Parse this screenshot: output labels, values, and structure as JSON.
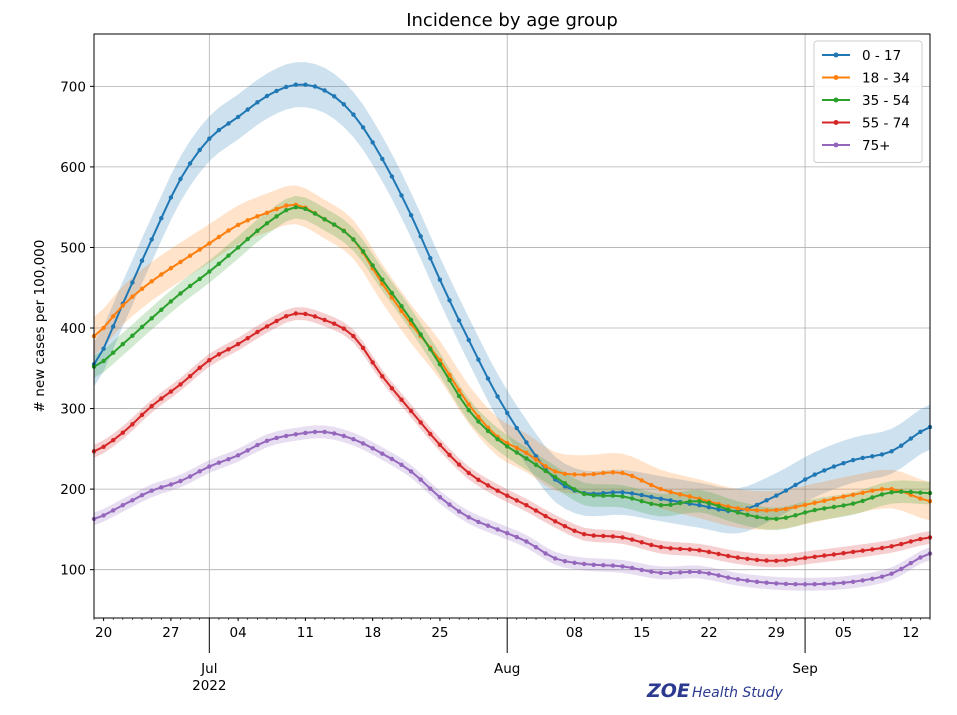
{
  "chart_data": {
    "type": "line",
    "title": "Incidence by age group",
    "xlabel": "",
    "ylabel": "# new cases per 100,000",
    "x_range": [
      "2022-06-19",
      "2022-09-14"
    ],
    "ylim": [
      40,
      765
    ],
    "grid": true,
    "legend_position": "top-right",
    "y_ticks": [
      100,
      200,
      300,
      400,
      500,
      600,
      700
    ],
    "x_minor_ticks": [
      {
        "date": "2022-06-20",
        "label": "20"
      },
      {
        "date": "2022-06-27",
        "label": "27"
      },
      {
        "date": "2022-07-04",
        "label": "04"
      },
      {
        "date": "2022-07-11",
        "label": "11"
      },
      {
        "date": "2022-07-18",
        "label": "18"
      },
      {
        "date": "2022-07-25",
        "label": "25"
      },
      {
        "date": "2022-08-08",
        "label": "08"
      },
      {
        "date": "2022-08-15",
        "label": "15"
      },
      {
        "date": "2022-08-22",
        "label": "22"
      },
      {
        "date": "2022-08-29",
        "label": "29"
      },
      {
        "date": "2022-09-05",
        "label": "05"
      },
      {
        "date": "2022-09-12",
        "label": "12"
      }
    ],
    "x_major_ticks": [
      {
        "date": "2022-07-01",
        "label": "Jul",
        "sublabel": "2022"
      },
      {
        "date": "2022-08-01",
        "label": "Aug",
        "sublabel": ""
      },
      {
        "date": "2022-09-01",
        "label": "Sep",
        "sublabel": ""
      }
    ],
    "series": [
      {
        "name": "0 - 17",
        "color": "#1f77b4",
        "band": 28,
        "points": [
          [
            "2022-06-19",
            355
          ],
          [
            "2022-06-22",
            430
          ],
          [
            "2022-06-25",
            510
          ],
          [
            "2022-06-28",
            585
          ],
          [
            "2022-07-01",
            635
          ],
          [
            "2022-07-04",
            662
          ],
          [
            "2022-07-07",
            688
          ],
          [
            "2022-07-10",
            702
          ],
          [
            "2022-07-13",
            695
          ],
          [
            "2022-07-16",
            665
          ],
          [
            "2022-07-19",
            610
          ],
          [
            "2022-07-22",
            540
          ],
          [
            "2022-07-25",
            460
          ],
          [
            "2022-07-28",
            385
          ],
          [
            "2022-07-31",
            315
          ],
          [
            "2022-08-03",
            258
          ],
          [
            "2022-08-06",
            212
          ],
          [
            "2022-08-09",
            195
          ],
          [
            "2022-08-13",
            196
          ],
          [
            "2022-08-17",
            188
          ],
          [
            "2022-08-21",
            180
          ],
          [
            "2022-08-25",
            173
          ],
          [
            "2022-08-29",
            192
          ],
          [
            "2022-09-02",
            218
          ],
          [
            "2022-09-06",
            236
          ],
          [
            "2022-09-10",
            247
          ],
          [
            "2022-09-14",
            277
          ]
        ]
      },
      {
        "name": "18 - 34",
        "color": "#ff7f0e",
        "band": 24,
        "points": [
          [
            "2022-06-19",
            390
          ],
          [
            "2022-06-22",
            428
          ],
          [
            "2022-06-25",
            458
          ],
          [
            "2022-06-28",
            482
          ],
          [
            "2022-07-01",
            505
          ],
          [
            "2022-07-04",
            528
          ],
          [
            "2022-07-07",
            543
          ],
          [
            "2022-07-10",
            553
          ],
          [
            "2022-07-13",
            535
          ],
          [
            "2022-07-16",
            510
          ],
          [
            "2022-07-19",
            455
          ],
          [
            "2022-07-22",
            405
          ],
          [
            "2022-07-25",
            360
          ],
          [
            "2022-07-28",
            305
          ],
          [
            "2022-07-31",
            265
          ],
          [
            "2022-08-03",
            245
          ],
          [
            "2022-08-06",
            222
          ],
          [
            "2022-08-09",
            218
          ],
          [
            "2022-08-13",
            220
          ],
          [
            "2022-08-17",
            200
          ],
          [
            "2022-08-21",
            188
          ],
          [
            "2022-08-25",
            176
          ],
          [
            "2022-08-29",
            174
          ],
          [
            "2022-09-02",
            183
          ],
          [
            "2022-09-06",
            193
          ],
          [
            "2022-09-10",
            200
          ],
          [
            "2022-09-14",
            185
          ]
        ]
      },
      {
        "name": "35 - 54",
        "color": "#2ca02c",
        "band": 14,
        "points": [
          [
            "2022-06-19",
            352
          ],
          [
            "2022-06-22",
            380
          ],
          [
            "2022-06-25",
            412
          ],
          [
            "2022-06-28",
            443
          ],
          [
            "2022-07-01",
            470
          ],
          [
            "2022-07-04",
            500
          ],
          [
            "2022-07-07",
            530
          ],
          [
            "2022-07-10",
            550
          ],
          [
            "2022-07-13",
            535
          ],
          [
            "2022-07-16",
            510
          ],
          [
            "2022-07-19",
            460
          ],
          [
            "2022-07-22",
            410
          ],
          [
            "2022-07-25",
            355
          ],
          [
            "2022-07-28",
            298
          ],
          [
            "2022-07-31",
            262
          ],
          [
            "2022-08-03",
            238
          ],
          [
            "2022-08-06",
            215
          ],
          [
            "2022-08-09",
            194
          ],
          [
            "2022-08-13",
            191
          ],
          [
            "2022-08-17",
            180
          ],
          [
            "2022-08-21",
            185
          ],
          [
            "2022-08-25",
            171
          ],
          [
            "2022-08-29",
            163
          ],
          [
            "2022-09-02",
            174
          ],
          [
            "2022-09-06",
            182
          ],
          [
            "2022-09-10",
            196
          ],
          [
            "2022-09-14",
            195
          ]
        ]
      },
      {
        "name": "55 - 74",
        "color": "#d62728",
        "band": 8,
        "points": [
          [
            "2022-06-19",
            247
          ],
          [
            "2022-06-22",
            270
          ],
          [
            "2022-06-25",
            303
          ],
          [
            "2022-06-28",
            330
          ],
          [
            "2022-07-01",
            360
          ],
          [
            "2022-07-04",
            380
          ],
          [
            "2022-07-07",
            402
          ],
          [
            "2022-07-10",
            418
          ],
          [
            "2022-07-13",
            410
          ],
          [
            "2022-07-16",
            390
          ],
          [
            "2022-07-19",
            340
          ],
          [
            "2022-07-22",
            297
          ],
          [
            "2022-07-25",
            255
          ],
          [
            "2022-07-28",
            220
          ],
          [
            "2022-07-31",
            198
          ],
          [
            "2022-08-03",
            180
          ],
          [
            "2022-08-06",
            160
          ],
          [
            "2022-08-09",
            144
          ],
          [
            "2022-08-13",
            140
          ],
          [
            "2022-08-17",
            128
          ],
          [
            "2022-08-21",
            124
          ],
          [
            "2022-08-25",
            115
          ],
          [
            "2022-08-29",
            111
          ],
          [
            "2022-09-02",
            116
          ],
          [
            "2022-09-06",
            122
          ],
          [
            "2022-09-10",
            129
          ],
          [
            "2022-09-14",
            140
          ]
        ]
      },
      {
        "name": "75+",
        "color": "#9467bd",
        "band": 8,
        "points": [
          [
            "2022-06-19",
            163
          ],
          [
            "2022-06-22",
            180
          ],
          [
            "2022-06-25",
            198
          ],
          [
            "2022-06-28",
            210
          ],
          [
            "2022-07-01",
            228
          ],
          [
            "2022-07-04",
            242
          ],
          [
            "2022-07-07",
            260
          ],
          [
            "2022-07-10",
            268
          ],
          [
            "2022-07-13",
            271
          ],
          [
            "2022-07-16",
            262
          ],
          [
            "2022-07-19",
            244
          ],
          [
            "2022-07-22",
            222
          ],
          [
            "2022-07-25",
            190
          ],
          [
            "2022-07-28",
            165
          ],
          [
            "2022-07-31",
            150
          ],
          [
            "2022-08-03",
            135
          ],
          [
            "2022-08-06",
            114
          ],
          [
            "2022-08-09",
            107
          ],
          [
            "2022-08-13",
            104
          ],
          [
            "2022-08-17",
            96
          ],
          [
            "2022-08-21",
            97
          ],
          [
            "2022-08-25",
            88
          ],
          [
            "2022-08-29",
            83
          ],
          [
            "2022-09-02",
            82
          ],
          [
            "2022-09-06",
            85
          ],
          [
            "2022-09-10",
            95
          ],
          [
            "2022-09-14",
            120
          ]
        ]
      }
    ]
  },
  "branding": {
    "logo_text": "ZOE",
    "logo_subtext": "Health Study"
  }
}
